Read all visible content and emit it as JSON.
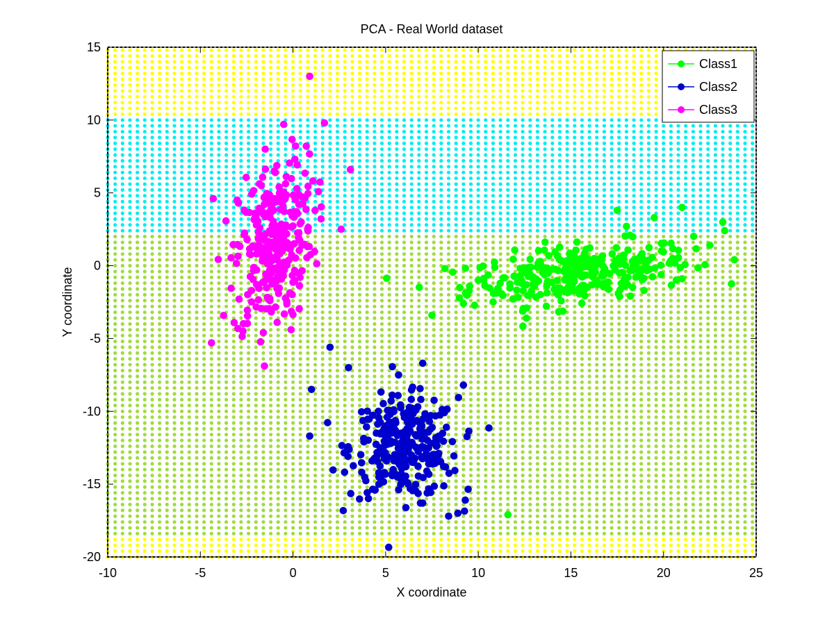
{
  "chart_data": {
    "type": "scatter",
    "title": "PCA - Real World dataset",
    "xlabel": "X coordinate",
    "ylabel": "Y coordinate",
    "xlim": [
      -10,
      25
    ],
    "ylim": [
      -20,
      15
    ],
    "xticks": [
      "-10",
      "-5",
      "0",
      "5",
      "10",
      "15",
      "20",
      "25"
    ],
    "yticks": [
      "-20",
      "-15",
      "-10",
      "-5",
      "0",
      "5",
      "10",
      "15"
    ],
    "grid": false,
    "legend": {
      "placement": "top-right",
      "entries": [
        "Class1",
        "Class2",
        "Class3"
      ]
    },
    "colors": {
      "Class1": "#00ff00",
      "Class2": "#0000cc",
      "Class3": "#ff00ff",
      "background_region_yellow": "#ffff00",
      "background_region_cyan": "#00eeee",
      "background_region_olive": "#a0dc3c"
    },
    "background_regions": [
      {
        "color": "yellow",
        "y_range": [
          10.4,
          15
        ]
      },
      {
        "color": "cyan",
        "y_range": [
          2.4,
          10.4
        ]
      },
      {
        "color": "olive",
        "y_range": [
          -18.4,
          2.4
        ]
      },
      {
        "color": "yellow",
        "y_range": [
          -20,
          -18.4
        ]
      }
    ],
    "series": [
      {
        "name": "Class1",
        "cluster": {
          "center": [
            15.5,
            -0.5
          ],
          "count": 300
        },
        "points": [
          [
            7.5,
            -3.4
          ],
          [
            8.2,
            -0.2
          ],
          [
            9.0,
            -1.5
          ],
          [
            9.2,
            -2.6
          ],
          [
            10.0,
            -1.0
          ],
          [
            11.6,
            -17.1
          ],
          [
            17.5,
            3.8
          ],
          [
            19.5,
            3.3
          ],
          [
            21.0,
            4.0
          ],
          [
            22.5,
            1.4
          ],
          [
            23.2,
            3.0
          ],
          [
            23.3,
            2.4
          ],
          [
            21.0,
            -0.9
          ],
          [
            12.6,
            -3.6
          ],
          [
            18.0,
            2.7
          ]
        ]
      },
      {
        "name": "Class2",
        "cluster": {
          "center": [
            6.0,
            -12.5
          ],
          "count": 300
        },
        "points": [
          [
            2.0,
            -5.6
          ],
          [
            3.0,
            -7.0
          ],
          [
            7.0,
            -6.7
          ],
          [
            9.2,
            -8.2
          ],
          [
            1.0,
            -8.5
          ],
          [
            0.9,
            -11.7
          ],
          [
            8.4,
            -17.2
          ],
          [
            8.9,
            -17.0
          ],
          [
            7.0,
            -16.3
          ],
          [
            9.3,
            -16.1
          ],
          [
            5.7,
            -7.5
          ]
        ]
      },
      {
        "name": "Class3",
        "cluster": {
          "center": [
            -1.0,
            1.5
          ],
          "count": 300
        },
        "points": [
          [
            0.9,
            13.0
          ],
          [
            -0.5,
            9.7
          ],
          [
            1.7,
            9.8
          ],
          [
            -1.5,
            8.0
          ],
          [
            3.1,
            6.6
          ],
          [
            -4.4,
            -5.3
          ],
          [
            -4.3,
            4.6
          ],
          [
            -0.1,
            -4.4
          ],
          [
            -2.7,
            -4.5
          ],
          [
            -1.6,
            -4.6
          ],
          [
            2.6,
            2.5
          ]
        ]
      }
    ]
  }
}
